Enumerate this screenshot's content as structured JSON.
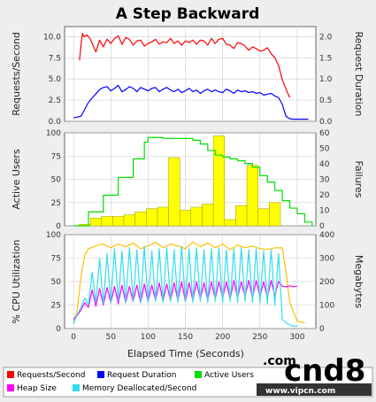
{
  "chart_data": [
    {
      "type": "line",
      "title": "A Step Backward",
      "ylabel": "Requests/Second",
      "y2label": "Request Duration",
      "xlim": [
        -12,
        325
      ],
      "ylim": [
        0,
        11.2
      ],
      "y2lim": [
        0,
        2.24
      ],
      "yticks": [
        "0.0",
        "2.5",
        "5.0",
        "7.5",
        "10.0"
      ],
      "yticks_v": [
        0,
        2.5,
        5,
        7.5,
        10
      ],
      "y2ticks": [
        "0.0",
        "0.5",
        "1.0",
        "1.5",
        "2.0"
      ],
      "y2ticks_v": [
        0,
        0.5,
        1,
        1.5,
        2
      ],
      "grid": true,
      "series": [
        {
          "name": "Requests/Second",
          "color": "#ff0000",
          "axis": "left",
          "x": [
            8,
            10,
            12,
            14,
            18,
            22,
            26,
            30,
            35,
            40,
            45,
            50,
            55,
            60,
            65,
            70,
            75,
            80,
            85,
            90,
            95,
            100,
            105,
            110,
            115,
            120,
            125,
            130,
            135,
            140,
            145,
            150,
            155,
            160,
            165,
            170,
            175,
            180,
            185,
            190,
            195,
            200,
            205,
            210,
            215,
            220,
            225,
            230,
            235,
            240,
            245,
            250,
            255,
            260,
            265,
            270,
            275,
            280,
            285,
            290
          ],
          "values": [
            7.2,
            9.0,
            10.4,
            10.0,
            10.2,
            9.8,
            9.0,
            8.2,
            9.6,
            8.8,
            9.7,
            9.2,
            9.8,
            10.1,
            9.1,
            9.9,
            9.7,
            9.0,
            9.5,
            9.6,
            8.9,
            9.2,
            9.4,
            9.7,
            9.1,
            9.4,
            9.3,
            9.8,
            9.2,
            9.5,
            9.0,
            9.5,
            9.3,
            9.6,
            9.1,
            9.6,
            9.5,
            9.0,
            9.8,
            9.2,
            9.7,
            9.8,
            9.1,
            9.0,
            8.6,
            9.3,
            9.2,
            8.9,
            8.4,
            8.8,
            8.6,
            8.3,
            8.4,
            8.7,
            8.0,
            7.5,
            6.6,
            4.9,
            3.8,
            2.8
          ]
        },
        {
          "name": "Request Duration",
          "color": "#0000ff",
          "axis": "right",
          "x": [
            0,
            5,
            10,
            15,
            20,
            25,
            30,
            35,
            40,
            45,
            50,
            55,
            60,
            65,
            70,
            75,
            80,
            85,
            90,
            95,
            100,
            105,
            110,
            115,
            120,
            125,
            130,
            135,
            140,
            145,
            150,
            155,
            160,
            165,
            170,
            175,
            180,
            185,
            190,
            195,
            200,
            205,
            210,
            215,
            220,
            225,
            230,
            235,
            240,
            245,
            250,
            255,
            260,
            265,
            270,
            275,
            280,
            285,
            290,
            295,
            300,
            305,
            310,
            315
          ],
          "values": [
            0.08,
            0.1,
            0.12,
            0.28,
            0.45,
            0.55,
            0.65,
            0.75,
            0.8,
            0.82,
            0.72,
            0.78,
            0.85,
            0.7,
            0.75,
            0.82,
            0.78,
            0.7,
            0.8,
            0.76,
            0.72,
            0.78,
            0.8,
            0.7,
            0.76,
            0.8,
            0.74,
            0.7,
            0.76,
            0.68,
            0.72,
            0.78,
            0.7,
            0.74,
            0.66,
            0.72,
            0.76,
            0.7,
            0.74,
            0.7,
            0.68,
            0.76,
            0.72,
            0.66,
            0.74,
            0.7,
            0.72,
            0.68,
            0.7,
            0.66,
            0.68,
            0.62,
            0.64,
            0.66,
            0.6,
            0.56,
            0.4,
            0.12,
            0.06,
            0.05,
            0.05,
            0.05,
            0.05,
            0.05
          ]
        }
      ]
    },
    {
      "type": "bar",
      "ylabel": "Active Users",
      "y2label": "Failures",
      "xlim": [
        -12,
        325
      ],
      "ylim": [
        0,
        100
      ],
      "y2lim": [
        0,
        60
      ],
      "yticks": [
        "0",
        "25",
        "50",
        "75",
        "100"
      ],
      "yticks_v": [
        0,
        25,
        50,
        75,
        100
      ],
      "y2ticks": [
        "0",
        "10",
        "20",
        "30",
        "40",
        "50",
        "60"
      ],
      "y2ticks_v": [
        0,
        10,
        20,
        30,
        40,
        50,
        60
      ],
      "grid": true,
      "bar_width": 15,
      "bars": {
        "name": "Failures",
        "color": "#ffff00",
        "axis": "right",
        "x": [
          15,
          30,
          45,
          60,
          75,
          90,
          105,
          120,
          135,
          150,
          165,
          180,
          195,
          210,
          225,
          240,
          255,
          270
        ],
        "values": [
          1,
          5,
          6,
          6,
          7,
          9,
          11,
          12,
          44,
          10,
          12,
          14,
          58,
          4,
          13,
          39,
          11,
          15
        ]
      },
      "series": [
        {
          "name": "Active Users",
          "color": "#00dd00",
          "axis": "left",
          "step": true,
          "x": [
            0,
            20,
            40,
            60,
            80,
            95,
            100,
            110,
            120,
            130,
            140,
            150,
            160,
            170,
            180,
            190,
            200,
            210,
            220,
            230,
            240,
            250,
            260,
            270,
            280,
            290,
            300,
            310,
            320
          ],
          "values": [
            0,
            15,
            33,
            52,
            72,
            90,
            95,
            95,
            94,
            94,
            94,
            94,
            92,
            88,
            81,
            76,
            74,
            72,
            70,
            67,
            63,
            54,
            47,
            38,
            27,
            19,
            13,
            4,
            0
          ]
        }
      ]
    },
    {
      "type": "line",
      "ylabel": "% CPU Utilization",
      "y2label": "Megabytes",
      "xlabel": "Elapsed Time (Seconds)",
      "xlim": [
        -12,
        325
      ],
      "ylim": [
        0,
        100
      ],
      "y2lim": [
        0,
        400
      ],
      "xticks": [
        "0",
        "50",
        "100",
        "150",
        "200",
        "250",
        "300"
      ],
      "xticks_v": [
        0,
        50,
        100,
        150,
        200,
        250,
        300
      ],
      "yticks": [
        "0",
        "25",
        "50",
        "75",
        "100"
      ],
      "yticks_v": [
        0,
        25,
        50,
        75,
        100
      ],
      "y2ticks": [
        "0",
        "100",
        "200",
        "300",
        "400"
      ],
      "y2ticks_v": [
        0,
        100,
        200,
        300,
        400
      ],
      "grid": true,
      "series": [
        {
          "name": "Requests/Second",
          "color": "#ffc000",
          "axis": "left",
          "x": [
            0,
            5,
            10,
            15,
            20,
            30,
            40,
            50,
            60,
            70,
            80,
            90,
            100,
            110,
            120,
            130,
            140,
            150,
            160,
            170,
            180,
            190,
            200,
            210,
            220,
            230,
            240,
            250,
            260,
            270,
            280,
            285,
            290,
            300,
            310
          ],
          "values": [
            6,
            20,
            55,
            78,
            85,
            88,
            90,
            86,
            90,
            87,
            91,
            85,
            88,
            92,
            86,
            90,
            88,
            85,
            92,
            87,
            91,
            86,
            90,
            84,
            89,
            86,
            88,
            85,
            84,
            86,
            86,
            60,
            28,
            8,
            6
          ]
        },
        {
          "name": "Heap Size",
          "color": "#ff00ff",
          "axis": "right",
          "x": [
            0,
            5,
            10,
            15,
            20,
            25,
            30,
            35,
            40,
            45,
            50,
            55,
            60,
            65,
            70,
            75,
            80,
            85,
            90,
            95,
            100,
            105,
            110,
            115,
            120,
            125,
            130,
            135,
            140,
            145,
            150,
            155,
            160,
            165,
            170,
            175,
            180,
            185,
            190,
            195,
            200,
            205,
            210,
            215,
            220,
            225,
            230,
            235,
            240,
            245,
            250,
            255,
            260,
            265,
            270,
            275,
            280,
            285,
            290,
            295,
            300
          ],
          "values": [
            40,
            55,
            80,
            110,
            90,
            165,
            95,
            170,
            100,
            175,
            110,
            180,
            105,
            185,
            110,
            180,
            115,
            185,
            110,
            190,
            115,
            185,
            120,
            195,
            115,
            190,
            120,
            195,
            120,
            200,
            115,
            195,
            120,
            200,
            125,
            195,
            120,
            200,
            125,
            200,
            130,
            200,
            125,
            205,
            130,
            200,
            135,
            205,
            130,
            205,
            135,
            200,
            130,
            205,
            140,
            200,
            180,
            178,
            182,
            178,
            180
          ]
        },
        {
          "name": "Memory Deallocated/Second",
          "color": "#33ddee",
          "axis": "right",
          "x": [
            0,
            5,
            10,
            15,
            20,
            25,
            30,
            35,
            40,
            45,
            50,
            55,
            60,
            65,
            70,
            75,
            80,
            85,
            90,
            95,
            100,
            105,
            110,
            115,
            120,
            125,
            130,
            135,
            140,
            145,
            150,
            155,
            160,
            165,
            170,
            175,
            180,
            185,
            190,
            195,
            200,
            205,
            210,
            215,
            220,
            225,
            230,
            235,
            240,
            245,
            250,
            255,
            260,
            265,
            270,
            275,
            280,
            285,
            290,
            295,
            300
          ],
          "values": [
            20,
            60,
            90,
            130,
            100,
            240,
            110,
            300,
            105,
            320,
            110,
            340,
            115,
            330,
            110,
            345,
            115,
            335,
            110,
            350,
            110,
            330,
            115,
            340,
            110,
            345,
            115,
            335,
            110,
            350,
            115,
            340,
            110,
            345,
            115,
            335,
            110,
            340,
            115,
            345,
            110,
            335,
            115,
            340,
            110,
            345,
            115,
            335,
            110,
            340,
            110,
            330,
            105,
            335,
            100,
            320,
            40,
            25,
            15,
            10,
            10
          ]
        }
      ]
    }
  ],
  "legend": {
    "items": [
      {
        "label": "Requests/Second",
        "color": "#ff0000"
      },
      {
        "label": "Request Duration",
        "color": "#0000ff"
      },
      {
        "label": "Active Users",
        "color": "#00dd00"
      },
      {
        "label": "Failures",
        "color": "#ffff00"
      },
      {
        "label": "Heap Size",
        "color": "#ff00ff"
      },
      {
        "label": "Memory Deallocated/Second",
        "color": "#33ddee"
      }
    ],
    "placement": "bottom"
  },
  "watermark": {
    "brand": "cnd8",
    "dotcom": ".com",
    "site": "www.vipcn.com"
  }
}
